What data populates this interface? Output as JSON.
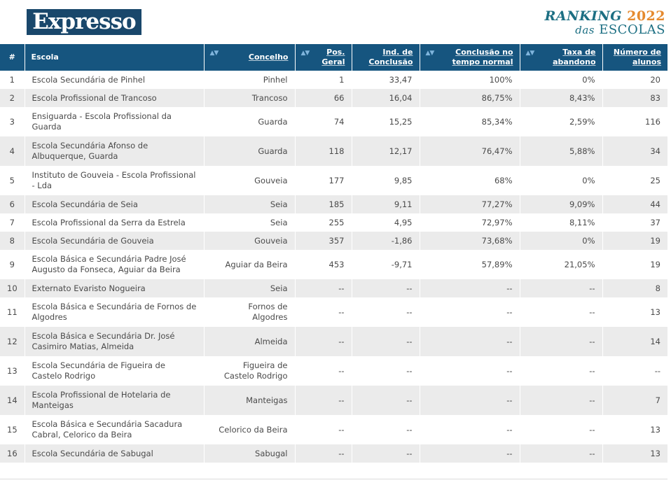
{
  "header": {
    "logo_text": "Expresso",
    "ranking_line1": "RANKING",
    "ranking_year": "2022",
    "ranking_line2_small": "das",
    "ranking_line2_big": "ESCOLAS"
  },
  "table": {
    "columns": [
      {
        "key": "n",
        "label": "#"
      },
      {
        "key": "escola",
        "label": "Escola"
      },
      {
        "key": "concelho",
        "label": "Concelho"
      },
      {
        "key": "pos",
        "label": "Pos. Geral"
      },
      {
        "key": "ind",
        "label": "Ind. de Conclusão"
      },
      {
        "key": "conc",
        "label": "Conclusão no tempo normal"
      },
      {
        "key": "taxa",
        "label": "Taxa de abandono"
      },
      {
        "key": "alunos",
        "label": "Número de alunos"
      }
    ],
    "sort_icon": "▲▼",
    "rows": [
      {
        "n": "1",
        "escola": "Escola Secundária de Pinhel",
        "concelho": "Pinhel",
        "pos": "1",
        "ind": "33,47",
        "conc": "100%",
        "taxa": "0%",
        "alunos": "20"
      },
      {
        "n": "2",
        "escola": "Escola Profissional de Trancoso",
        "concelho": "Trancoso",
        "pos": "66",
        "ind": "16,04",
        "conc": "86,75%",
        "taxa": "8,43%",
        "alunos": "83"
      },
      {
        "n": "3",
        "escola": "Ensiguarda - Escola Profissional da Guarda",
        "concelho": "Guarda",
        "pos": "74",
        "ind": "15,25",
        "conc": "85,34%",
        "taxa": "2,59%",
        "alunos": "116"
      },
      {
        "n": "4",
        "escola": "Escola Secundária Afonso de Albuquerque, Guarda",
        "concelho": "Guarda",
        "pos": "118",
        "ind": "12,17",
        "conc": "76,47%",
        "taxa": "5,88%",
        "alunos": "34"
      },
      {
        "n": "5",
        "escola": "Instituto de Gouveia - Escola Profissional - Lda",
        "concelho": "Gouveia",
        "pos": "177",
        "ind": "9,85",
        "conc": "68%",
        "taxa": "0%",
        "alunos": "25"
      },
      {
        "n": "6",
        "escola": "Escola Secundária de Seia",
        "concelho": "Seia",
        "pos": "185",
        "ind": "9,11",
        "conc": "77,27%",
        "taxa": "9,09%",
        "alunos": "44"
      },
      {
        "n": "7",
        "escola": "Escola Profissional da Serra da Estrela",
        "concelho": "Seia",
        "pos": "255",
        "ind": "4,95",
        "conc": "72,97%",
        "taxa": "8,11%",
        "alunos": "37"
      },
      {
        "n": "8",
        "escola": "Escola Secundária de Gouveia",
        "concelho": "Gouveia",
        "pos": "357",
        "ind": "-1,86",
        "conc": "73,68%",
        "taxa": "0%",
        "alunos": "19"
      },
      {
        "n": "9",
        "escola": "Escola Básica e Secundária Padre José Augusto da Fonseca, Aguiar da Beira",
        "concelho": "Aguiar da Beira",
        "pos": "453",
        "ind": "-9,71",
        "conc": "57,89%",
        "taxa": "21,05%",
        "alunos": "19"
      },
      {
        "n": "10",
        "escola": "Externato Evaristo Nogueira",
        "concelho": "Seia",
        "pos": "--",
        "ind": "--",
        "conc": "--",
        "taxa": "--",
        "alunos": "8"
      },
      {
        "n": "11",
        "escola": "Escola Básica e Secundária de Fornos de Algodres",
        "concelho": "Fornos de Algodres",
        "pos": "--",
        "ind": "--",
        "conc": "--",
        "taxa": "--",
        "alunos": "13"
      },
      {
        "n": "12",
        "escola": "Escola Básica e Secundária Dr. José Casimiro Matias, Almeida",
        "concelho": "Almeida",
        "pos": "--",
        "ind": "--",
        "conc": "--",
        "taxa": "--",
        "alunos": "14"
      },
      {
        "n": "13",
        "escola": "Escola Secundária de Figueira de Castelo Rodrigo",
        "concelho": "Figueira de Castelo Rodrigo",
        "pos": "--",
        "ind": "--",
        "conc": "--",
        "taxa": "--",
        "alunos": "--"
      },
      {
        "n": "14",
        "escola": "Escola Profissional de Hotelaria de Manteigas",
        "concelho": "Manteigas",
        "pos": "--",
        "ind": "--",
        "conc": "--",
        "taxa": "--",
        "alunos": "7"
      },
      {
        "n": "15",
        "escola": "Escola Básica e Secundária Sacadura Cabral, Celorico da Beira",
        "concelho": "Celorico da Beira",
        "pos": "--",
        "ind": "--",
        "conc": "--",
        "taxa": "--",
        "alunos": "13"
      },
      {
        "n": "16",
        "escola": "Escola Secundária de Sabugal",
        "concelho": "Sabugal",
        "pos": "--",
        "ind": "--",
        "conc": "--",
        "taxa": "--",
        "alunos": "13"
      }
    ]
  }
}
